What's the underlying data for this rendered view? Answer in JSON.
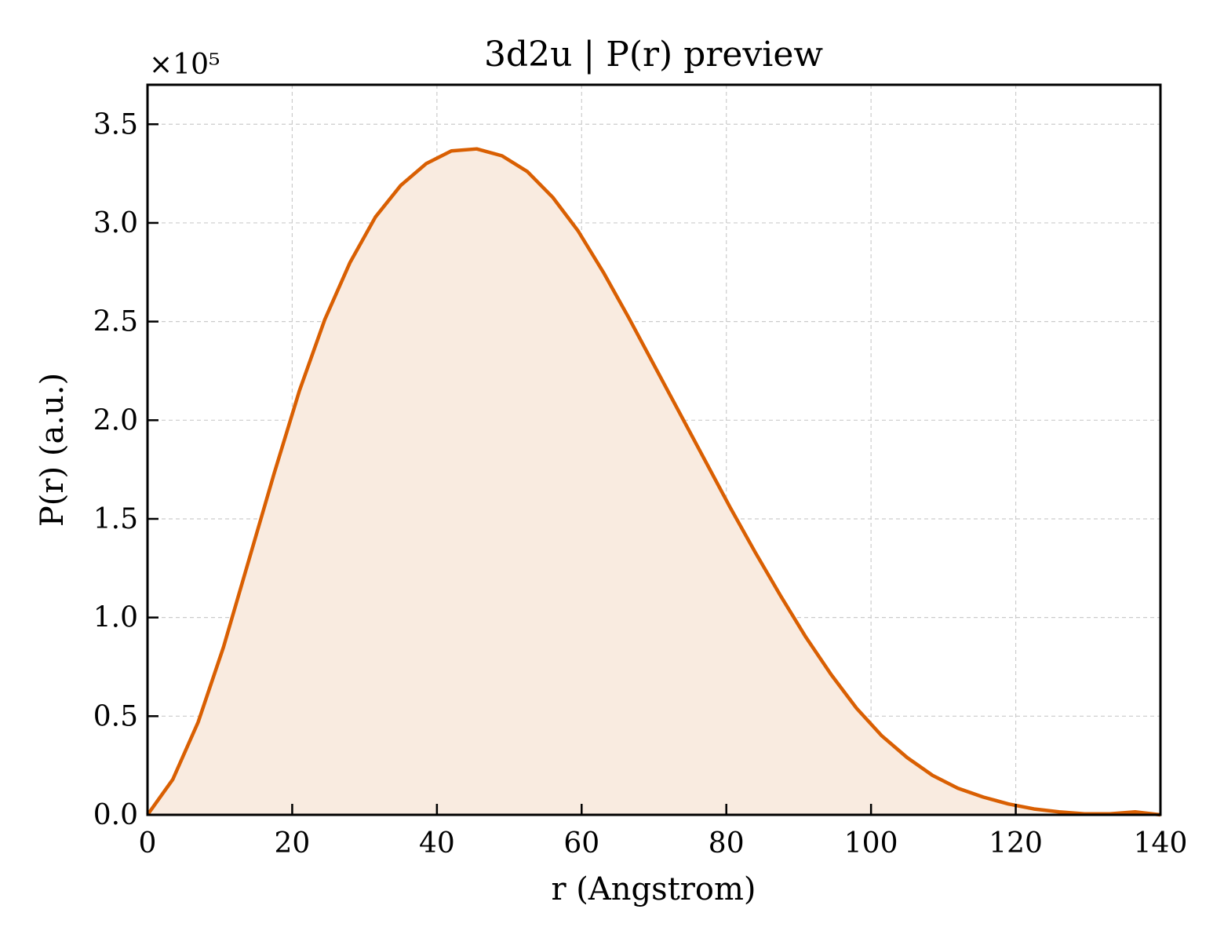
{
  "chart_data": {
    "type": "area",
    "title": "3d2u | P(r) preview",
    "xlabel": "r (Angstrom)",
    "ylabel": "P(r) (a.u.)",
    "y_offset_label": "×10⁵",
    "xlim": [
      0,
      140
    ],
    "ylim": [
      0,
      3.7
    ],
    "y_scale_factor": 100000,
    "x_ticks": [
      0,
      20,
      40,
      60,
      80,
      100,
      120,
      140
    ],
    "x_tick_labels": [
      "0",
      "20",
      "40",
      "60",
      "80",
      "100",
      "120",
      "140"
    ],
    "y_ticks": [
      0.0,
      0.5,
      1.0,
      1.5,
      2.0,
      2.5,
      3.0,
      3.5
    ],
    "y_tick_labels": [
      "0.0",
      "0.5",
      "1.0",
      "1.5",
      "2.0",
      "2.5",
      "3.0",
      "3.5"
    ],
    "grid": true,
    "line_color": "#d95f02",
    "fill_color": "#f9ebe0",
    "series": [
      {
        "x": [
          0,
          3.5,
          7,
          10.5,
          14,
          17.5,
          21,
          24.5,
          28,
          31.5,
          35,
          38.5,
          42,
          45.5,
          49,
          52.5,
          56,
          59.5,
          63,
          66.5,
          70,
          73.5,
          77,
          80.5,
          84,
          87.5,
          91,
          94.5,
          98,
          101.5,
          105,
          108.5,
          112,
          115.5,
          119,
          122.5,
          126,
          129.5,
          133,
          136.5,
          140
        ],
        "values": [
          0.0,
          0.18,
          0.47,
          0.85,
          1.29,
          1.73,
          2.15,
          2.51,
          2.8,
          3.03,
          3.19,
          3.3,
          3.365,
          3.375,
          3.34,
          3.26,
          3.13,
          2.96,
          2.75,
          2.52,
          2.28,
          2.04,
          1.8,
          1.56,
          1.33,
          1.11,
          0.9,
          0.71,
          0.54,
          0.4,
          0.29,
          0.2,
          0.135,
          0.09,
          0.055,
          0.03,
          0.015,
          0.005,
          0.005,
          0.015,
          0.0
        ]
      }
    ]
  }
}
